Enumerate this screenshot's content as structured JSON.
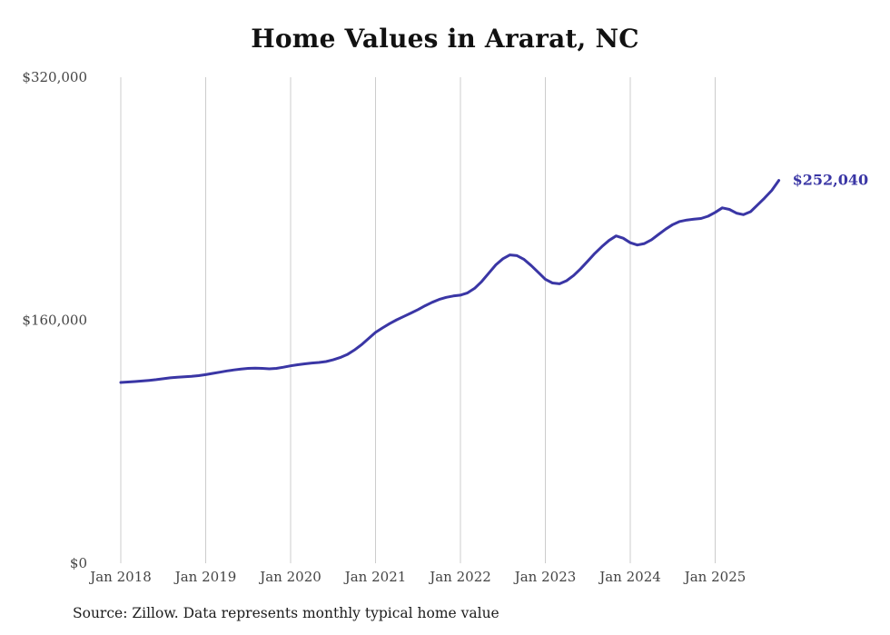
{
  "chart_data": {
    "type": "line",
    "title": "Home Values in Ararat, NC",
    "xlabel": "",
    "ylabel": "",
    "ylim": [
      0,
      320000
    ],
    "grid": "vertical-only",
    "line_color": "#3a36a5",
    "grid_color": "#cccccc",
    "end_label": "$252,040",
    "x_ticks": [
      "Jan 2018",
      "Jan 2019",
      "Jan 2020",
      "Jan 2021",
      "Jan 2022",
      "Jan 2023",
      "Jan 2024",
      "Jan 2025"
    ],
    "y_ticks": [
      {
        "value": 0,
        "label": "$0"
      },
      {
        "value": 160000,
        "label": "$160,000"
      },
      {
        "value": 320000,
        "label": "$320,000"
      }
    ],
    "months": [
      "2018-01",
      "2018-02",
      "2018-03",
      "2018-04",
      "2018-05",
      "2018-06",
      "2018-07",
      "2018-08",
      "2018-09",
      "2018-10",
      "2018-11",
      "2018-12",
      "2019-01",
      "2019-02",
      "2019-03",
      "2019-04",
      "2019-05",
      "2019-06",
      "2019-07",
      "2019-08",
      "2019-09",
      "2019-10",
      "2019-11",
      "2019-12",
      "2020-01",
      "2020-02",
      "2020-03",
      "2020-04",
      "2020-05",
      "2020-06",
      "2020-07",
      "2020-08",
      "2020-09",
      "2020-10",
      "2020-11",
      "2020-12",
      "2021-01",
      "2021-02",
      "2021-03",
      "2021-04",
      "2021-05",
      "2021-06",
      "2021-07",
      "2021-08",
      "2021-09",
      "2021-10",
      "2021-11",
      "2021-12",
      "2022-01",
      "2022-02",
      "2022-03",
      "2022-04",
      "2022-05",
      "2022-06",
      "2022-07",
      "2022-08",
      "2022-09",
      "2022-10",
      "2022-11",
      "2022-12",
      "2023-01",
      "2023-02",
      "2023-03",
      "2023-04",
      "2023-05",
      "2023-06",
      "2023-07",
      "2023-08",
      "2023-09",
      "2023-10",
      "2023-11",
      "2023-12",
      "2024-01",
      "2024-02",
      "2024-03",
      "2024-04",
      "2024-05",
      "2024-06",
      "2024-07",
      "2024-08",
      "2024-09",
      "2024-10",
      "2024-11",
      "2024-12",
      "2025-01",
      "2025-02",
      "2025-03",
      "2025-04",
      "2025-05",
      "2025-06",
      "2025-07",
      "2025-08",
      "2025-09",
      "2025-10"
    ],
    "values": [
      119000,
      119300,
      119600,
      120000,
      120400,
      120900,
      121500,
      122100,
      122500,
      122800,
      123100,
      123500,
      124200,
      125000,
      125800,
      126600,
      127300,
      127900,
      128300,
      128500,
      128300,
      128000,
      128300,
      129100,
      130000,
      130700,
      131300,
      131800,
      132200,
      132800,
      133900,
      135400,
      137400,
      140300,
      143800,
      147900,
      152000,
      155000,
      157800,
      160300,
      162500,
      164700,
      167000,
      169500,
      171800,
      173700,
      175100,
      176000,
      176500,
      178000,
      181000,
      185500,
      191000,
      196500,
      200500,
      203000,
      202500,
      200000,
      196000,
      191500,
      187000,
      184500,
      184000,
      186000,
      189500,
      194000,
      199000,
      204000,
      208500,
      212500,
      215500,
      214000,
      211000,
      209500,
      210500,
      213000,
      216500,
      220000,
      223000,
      225000,
      226000,
      226500,
      227000,
      228500,
      231000,
      234000,
      233000,
      230500,
      229500,
      231500,
      236000,
      240500,
      245500,
      252040
    ]
  },
  "footer": {
    "source": "Source: Zillow. Data represents monthly typical home value"
  }
}
